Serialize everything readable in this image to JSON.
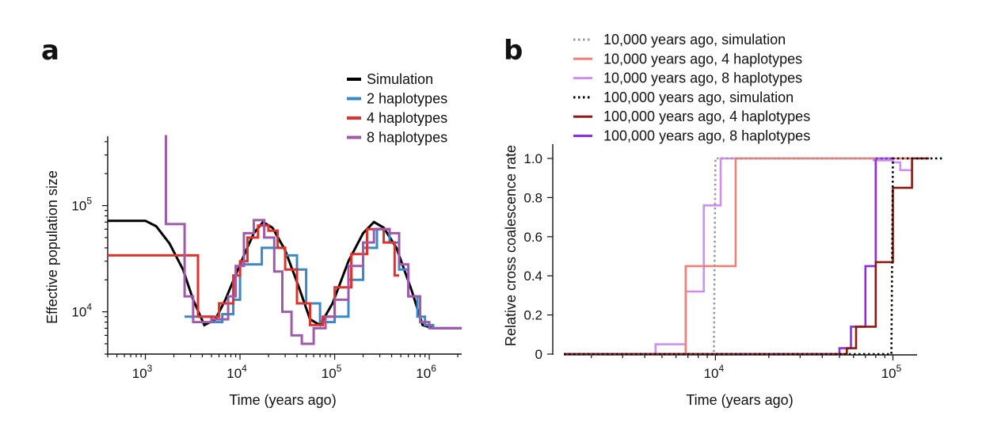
{
  "chart_data": [
    {
      "panel": "a",
      "type": "line",
      "xlabel": "Time (years ago)",
      "ylabel": "Effective population size",
      "x_scale": "log",
      "y_scale": "log",
      "xlim": [
        400,
        2200000
      ],
      "ylim": [
        4000,
        450000
      ],
      "x_ticks": [
        {
          "base": "10",
          "exp": "3",
          "value": 1000
        },
        {
          "base": "10",
          "exp": "4",
          "value": 10000
        },
        {
          "base": "10",
          "exp": "5",
          "value": 100000
        },
        {
          "base": "10",
          "exp": "6",
          "value": 1000000
        }
      ],
      "y_ticks": [
        {
          "base": "10",
          "exp": "4",
          "value": 10000
        },
        {
          "base": "10",
          "exp": "5",
          "value": 100000
        }
      ],
      "legend_position": "top-right",
      "series": [
        {
          "name": "Simulation",
          "color": "#000000",
          "step": false,
          "points": [
            [
              400,
              72000
            ],
            [
              1000,
              72000
            ],
            [
              1300,
              64000
            ],
            [
              1800,
              44000
            ],
            [
              2500,
              25000
            ],
            [
              3200,
              13000
            ],
            [
              4200,
              7500
            ],
            [
              5500,
              8500
            ],
            [
              7000,
              13000
            ],
            [
              10000,
              28000
            ],
            [
              14000,
              55000
            ],
            [
              17500,
              70000
            ],
            [
              22000,
              62000
            ],
            [
              30000,
              38000
            ],
            [
              42000,
              17000
            ],
            [
              55000,
              8500
            ],
            [
              70000,
              7500
            ],
            [
              95000,
              12000
            ],
            [
              140000,
              30000
            ],
            [
              200000,
              55000
            ],
            [
              260000,
              70000
            ],
            [
              330000,
              62000
            ],
            [
              450000,
              40000
            ],
            [
              650000,
              16000
            ],
            [
              850000,
              7500
            ],
            [
              1100000,
              7000
            ],
            [
              2200000,
              7000
            ]
          ]
        },
        {
          "name": "2 haplotypes",
          "color": "#3b88c4",
          "step": true,
          "points": [
            [
              2600,
              9000
            ],
            [
              5000,
              8000
            ],
            [
              6500,
              9500
            ],
            [
              8500,
              13000
            ],
            [
              10000,
              28000
            ],
            [
              17000,
              40000
            ],
            [
              30000,
              34000
            ],
            [
              40000,
              25000
            ],
            [
              50000,
              12000
            ],
            [
              70000,
              8000
            ],
            [
              100000,
              9000
            ],
            [
              140000,
              20000
            ],
            [
              200000,
              40000
            ],
            [
              280000,
              60000
            ],
            [
              380000,
              45000
            ],
            [
              480000,
              25000
            ],
            [
              600000,
              14000
            ],
            [
              750000,
              9000
            ],
            [
              900000,
              7500
            ],
            [
              1100000,
              7000
            ],
            [
              2200000,
              7000
            ]
          ]
        },
        {
          "name": "4 haplotypes",
          "color": "#e0312a",
          "step": true,
          "points": [
            [
              400,
              34000
            ],
            [
              3600,
              9000
            ],
            [
              6000,
              12000
            ],
            [
              8500,
              22000
            ],
            [
              10000,
              30000
            ],
            [
              12000,
              50000
            ],
            [
              15500,
              65000
            ],
            [
              20000,
              58000
            ],
            [
              25000,
              40000
            ],
            [
              30000,
              25000
            ],
            [
              40000,
              12000
            ],
            [
              55000,
              7500
            ],
            [
              75000,
              9000
            ],
            [
              100000,
              17000
            ],
            [
              150000,
              35000
            ],
            [
              220000,
              60000
            ],
            [
              330000,
              45000
            ],
            [
              430000,
              22000
            ],
            [
              480000,
              22000
            ]
          ]
        },
        {
          "name": "8 haplotypes",
          "color": "#a05aaa",
          "step": true,
          "points": [
            [
              1600,
              450000
            ],
            [
              1650,
              67000
            ],
            [
              2600,
              14000
            ],
            [
              3200,
              8000
            ],
            [
              5000,
              8500
            ],
            [
              7500,
              14000
            ],
            [
              9000,
              27000
            ],
            [
              11000,
              55000
            ],
            [
              14000,
              73000
            ],
            [
              18000,
              50000
            ],
            [
              23000,
              24000
            ],
            [
              28000,
              10000
            ],
            [
              35000,
              6000
            ],
            [
              45000,
              5000
            ],
            [
              60000,
              7000
            ],
            [
              80000,
              9000
            ],
            [
              100000,
              13000
            ],
            [
              140000,
              27000
            ],
            [
              200000,
              45000
            ],
            [
              260000,
              60000
            ],
            [
              380000,
              55000
            ],
            [
              480000,
              28000
            ],
            [
              600000,
              14000
            ],
            [
              800000,
              8000
            ],
            [
              1000000,
              7000
            ],
            [
              2200000,
              7000
            ]
          ]
        }
      ]
    },
    {
      "panel": "b",
      "type": "line",
      "xlabel": "Time (years ago)",
      "ylabel": "Relative cross coalescence rate",
      "x_scale": "log",
      "xlim": [
        1400,
        190000
      ],
      "ylim": [
        0,
        1.0
      ],
      "x_ticks": [
        {
          "base": "10",
          "exp": "4",
          "value": 10000
        },
        {
          "base": "10",
          "exp": "5",
          "value": 100000
        }
      ],
      "y_ticks": [
        "0",
        "0.2",
        "0.4",
        "0.6",
        "0.8",
        "1.0"
      ],
      "legend_position": "top",
      "series": [
        {
          "name": "10,000 years ago, simulation",
          "color": "#999999",
          "dash": "dot",
          "points": [
            [
              1400,
              0
            ],
            [
              9800,
              0
            ],
            [
              10000,
              1.0
            ],
            [
              190000,
              1.0
            ]
          ]
        },
        {
          "name": "10,000 years ago, 4 haplotypes",
          "color": "#f47f72",
          "dash": "solid",
          "points": [
            [
              1400,
              0
            ],
            [
              6800,
              0
            ],
            [
              6800,
              0.45
            ],
            [
              13000,
              0.45
            ],
            [
              13000,
              1.0
            ],
            [
              128000,
              1.0
            ]
          ]
        },
        {
          "name": "10,000 years ago, 8 haplotypes",
          "color": "#d08ef0",
          "dash": "solid",
          "points": [
            [
              1400,
              0
            ],
            [
              4600,
              0
            ],
            [
              4600,
              0.05
            ],
            [
              6800,
              0.05
            ],
            [
              6800,
              0.32
            ],
            [
              8600,
              0.32
            ],
            [
              8600,
              0.76
            ],
            [
              10700,
              0.76
            ],
            [
              10700,
              1.0
            ],
            [
              78000,
              1.0
            ],
            [
              78000,
              0.99
            ],
            [
              100000,
              0.99
            ],
            [
              100000,
              0.98
            ],
            [
              110000,
              0.98
            ],
            [
              110000,
              0.94
            ],
            [
              128000,
              0.94
            ]
          ]
        },
        {
          "name": "100,000 years ago, simulation",
          "color": "#000000",
          "dash": "dot",
          "points": [
            [
              1400,
              0
            ],
            [
              98000,
              0
            ],
            [
              100000,
              1.0
            ],
            [
              190000,
              1.0
            ]
          ]
        },
        {
          "name": "100,000 years ago, 4 haplotypes",
          "color": "#8b1a10",
          "dash": "solid",
          "points": [
            [
              1400,
              0
            ],
            [
              55000,
              0
            ],
            [
              55000,
              0.03
            ],
            [
              62000,
              0.03
            ],
            [
              62000,
              0.14
            ],
            [
              80000,
              0.14
            ],
            [
              80000,
              0.47
            ],
            [
              100000,
              0.47
            ],
            [
              100000,
              0.85
            ],
            [
              128000,
              0.85
            ],
            [
              128000,
              1.0
            ],
            [
              160000,
              1.0
            ]
          ]
        },
        {
          "name": "100,000 years ago, 8 haplotypes",
          "color": "#8a2ce8",
          "dash": "solid",
          "points": [
            [
              1400,
              0
            ],
            [
              50000,
              0
            ],
            [
              50000,
              0.03
            ],
            [
              58000,
              0.03
            ],
            [
              58000,
              0.14
            ],
            [
              70000,
              0.14
            ],
            [
              70000,
              0.45
            ],
            [
              80000,
              0.45
            ],
            [
              80000,
              1.0
            ],
            [
              100000,
              1.0
            ]
          ]
        }
      ]
    }
  ]
}
